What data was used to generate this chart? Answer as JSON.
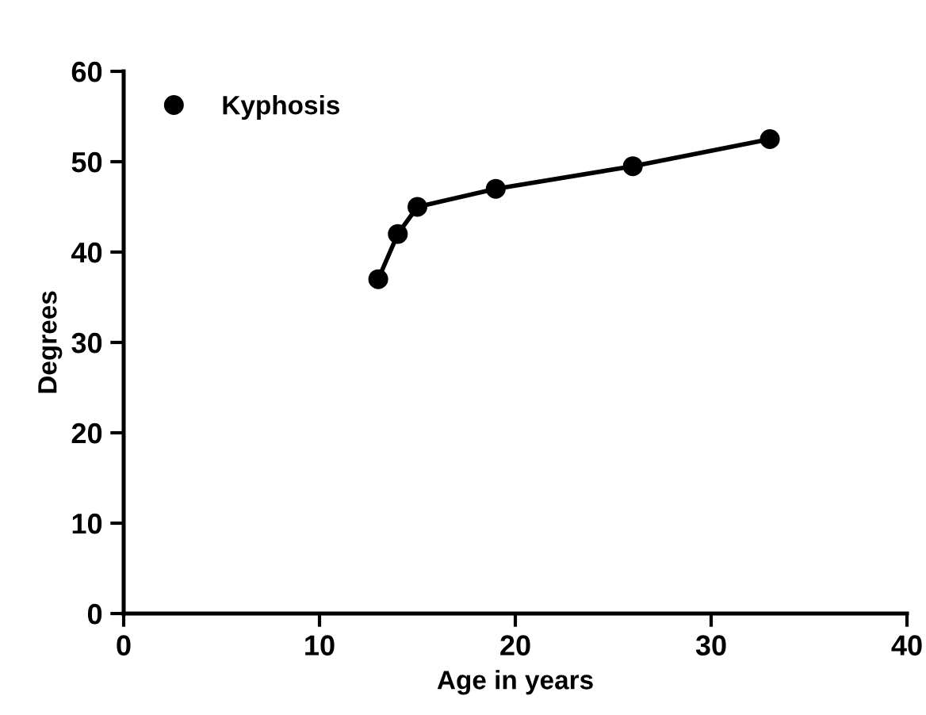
{
  "chart_data": {
    "type": "line",
    "xlabel": "Age in years",
    "ylabel": "Degrees",
    "x": [
      13,
      14,
      15,
      19,
      26,
      33
    ],
    "series": [
      {
        "name": "Kyphosis",
        "color": "#000000",
        "values": [
          37,
          42,
          45,
          47,
          49.5,
          52.5
        ]
      }
    ],
    "xlim": [
      0,
      40
    ],
    "ylim": [
      0,
      60
    ],
    "xticks": [
      0,
      10,
      20,
      30,
      40
    ],
    "yticks": [
      0,
      10,
      20,
      30,
      40,
      50,
      60
    ],
    "marker": "circle",
    "line_style": "solid",
    "legend": "top left",
    "grid": false
  }
}
